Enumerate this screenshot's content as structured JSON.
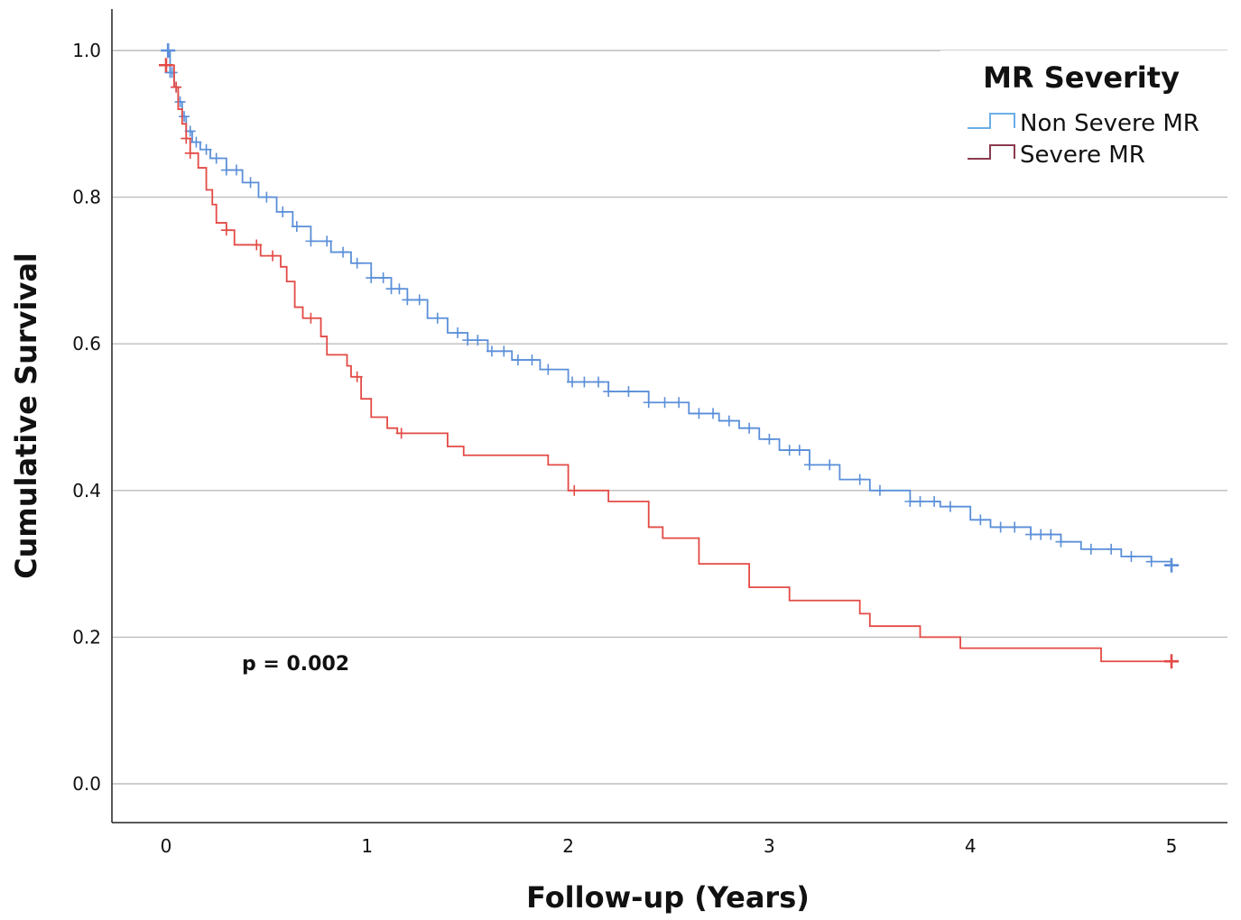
{
  "chart_data": {
    "type": "line",
    "subtype": "kaplan-meier step",
    "title": "",
    "xlabel": "Follow-up (Years)",
    "ylabel": "Cumulative Survival",
    "xlim": [
      0,
      5
    ],
    "ylim": [
      0,
      1
    ],
    "x_ticks": [
      "0",
      "1",
      "2",
      "3",
      "4",
      "5"
    ],
    "y_ticks": [
      "0.0",
      "0.2",
      "0.4",
      "0.6",
      "0.8",
      "1.0"
    ],
    "grid": "horizontal",
    "legend": {
      "title": "MR Severity",
      "position": "top-right",
      "entries": [
        "Non Severe MR",
        "Severe MR"
      ]
    },
    "annotation": "p = 0.002",
    "series": [
      {
        "name": "Non Severe MR",
        "color": "#5b8fd9",
        "legend_color": "#6aaee8",
        "points": [
          [
            0,
            1.0
          ],
          [
            0.02,
            0.97
          ],
          [
            0.04,
            0.95
          ],
          [
            0.06,
            0.93
          ],
          [
            0.08,
            0.91
          ],
          [
            0.1,
            0.89
          ],
          [
            0.13,
            0.875
          ],
          [
            0.17,
            0.865
          ],
          [
            0.22,
            0.853
          ],
          [
            0.3,
            0.837
          ],
          [
            0.38,
            0.82
          ],
          [
            0.46,
            0.8
          ],
          [
            0.55,
            0.78
          ],
          [
            0.63,
            0.76
          ],
          [
            0.72,
            0.74
          ],
          [
            0.82,
            0.725
          ],
          [
            0.92,
            0.71
          ],
          [
            1.02,
            0.69
          ],
          [
            1.12,
            0.675
          ],
          [
            1.2,
            0.66
          ],
          [
            1.3,
            0.635
          ],
          [
            1.4,
            0.615
          ],
          [
            1.5,
            0.605
          ],
          [
            1.6,
            0.59
          ],
          [
            1.72,
            0.578
          ],
          [
            1.86,
            0.565
          ],
          [
            2.0,
            0.548
          ],
          [
            2.2,
            0.535
          ],
          [
            2.4,
            0.52
          ],
          [
            2.6,
            0.505
          ],
          [
            2.75,
            0.495
          ],
          [
            2.85,
            0.485
          ],
          [
            2.95,
            0.47
          ],
          [
            3.05,
            0.455
          ],
          [
            3.2,
            0.435
          ],
          [
            3.35,
            0.415
          ],
          [
            3.5,
            0.4
          ],
          [
            3.7,
            0.385
          ],
          [
            3.85,
            0.378
          ],
          [
            4.0,
            0.36
          ],
          [
            4.1,
            0.35
          ],
          [
            4.3,
            0.34
          ],
          [
            4.45,
            0.33
          ],
          [
            4.55,
            0.32
          ],
          [
            4.75,
            0.31
          ],
          [
            4.9,
            0.303
          ],
          [
            5.0,
            0.298
          ]
        ],
        "censored_x": [
          0.01,
          0.02,
          0.03,
          0.05,
          0.07,
          0.09,
          0.12,
          0.15,
          0.2,
          0.25,
          0.3,
          0.35,
          0.42,
          0.5,
          0.58,
          0.65,
          0.72,
          0.8,
          0.88,
          0.95,
          1.02,
          1.08,
          1.12,
          1.16,
          1.2,
          1.26,
          1.35,
          1.45,
          1.5,
          1.55,
          1.62,
          1.68,
          1.75,
          1.82,
          1.9,
          2.02,
          2.08,
          2.15,
          2.2,
          2.3,
          2.4,
          2.48,
          2.55,
          2.65,
          2.72,
          2.8,
          2.9,
          3.0,
          3.1,
          3.15,
          3.2,
          3.3,
          3.45,
          3.55,
          3.7,
          3.75,
          3.82,
          3.9,
          4.05,
          4.15,
          4.22,
          4.3,
          4.35,
          4.4,
          4.45,
          4.6,
          4.7,
          4.8,
          4.9,
          5.0
        ]
      },
      {
        "name": "Severe MR",
        "color": "#e34a45",
        "legend_color": "#8b3a4f",
        "points": [
          [
            0,
            0.98
          ],
          [
            0.04,
            0.95
          ],
          [
            0.06,
            0.92
          ],
          [
            0.08,
            0.9
          ],
          [
            0.1,
            0.88
          ],
          [
            0.12,
            0.86
          ],
          [
            0.16,
            0.84
          ],
          [
            0.2,
            0.81
          ],
          [
            0.23,
            0.79
          ],
          [
            0.25,
            0.765
          ],
          [
            0.3,
            0.755
          ],
          [
            0.34,
            0.735
          ],
          [
            0.47,
            0.72
          ],
          [
            0.57,
            0.705
          ],
          [
            0.6,
            0.685
          ],
          [
            0.64,
            0.65
          ],
          [
            0.68,
            0.635
          ],
          [
            0.77,
            0.61
          ],
          [
            0.8,
            0.585
          ],
          [
            0.9,
            0.57
          ],
          [
            0.92,
            0.555
          ],
          [
            0.97,
            0.525
          ],
          [
            1.02,
            0.5
          ],
          [
            1.1,
            0.485
          ],
          [
            1.15,
            0.478
          ],
          [
            1.4,
            0.46
          ],
          [
            1.48,
            0.448
          ],
          [
            1.9,
            0.435
          ],
          [
            2.0,
            0.4
          ],
          [
            2.2,
            0.385
          ],
          [
            2.4,
            0.35
          ],
          [
            2.47,
            0.335
          ],
          [
            2.65,
            0.3
          ],
          [
            2.9,
            0.268
          ],
          [
            3.1,
            0.25
          ],
          [
            3.45,
            0.232
          ],
          [
            3.5,
            0.215
          ],
          [
            3.75,
            0.2
          ],
          [
            3.95,
            0.185
          ],
          [
            4.65,
            0.167
          ],
          [
            5.0,
            0.167
          ]
        ],
        "censored_x": [
          0.0,
          0.05,
          0.1,
          0.12,
          0.3,
          0.45,
          0.53,
          0.72,
          0.95,
          1.17,
          2.03,
          5.0
        ]
      }
    ]
  }
}
